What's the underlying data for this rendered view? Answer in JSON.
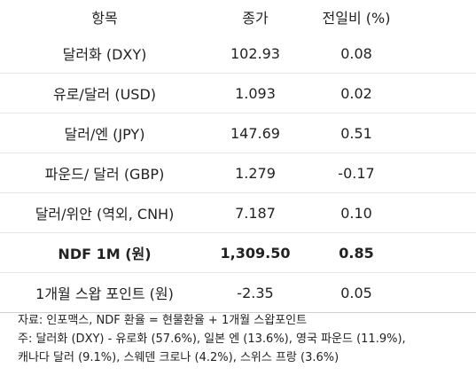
{
  "table": {
    "headers": [
      "항목",
      "종가",
      "전일비 (%)"
    ],
    "rows": [
      {
        "item": "달러화 (DXY)",
        "close": "102.93",
        "change": "0.08",
        "bold": false
      },
      {
        "item": "유로/달러 (USD)",
        "close": "1.093",
        "change": "0.02",
        "bold": false
      },
      {
        "item": "달러/엔 (JPY)",
        "close": "147.69",
        "change": "0.51",
        "bold": false
      },
      {
        "item": "파운드/ 달러 (GBP)",
        "close": "1.279",
        "change": "-0.17",
        "bold": false
      },
      {
        "item": "달러/위안 (역외, CNH)",
        "close": "7.187",
        "change": "0.10",
        "bold": false
      },
      {
        "item": "NDF 1M (원)",
        "close": "1,309.50",
        "change": "0.85",
        "bold": true
      },
      {
        "item": "1개월 스왑 포인트 (원)",
        "close": "-2.35",
        "change": "0.05",
        "bold": false
      }
    ]
  },
  "notes": {
    "source": "자료: 인포맥스, NDF 환율 = 현물환율 + 1개월 스왑포인트",
    "note_line1": "주: 달러화 (DXY) - 유로화 (57.6%), 일본 엔 (13.6%), 영국 파운드 (11.9%),",
    "note_line2": "캐나다 달러 (9.1%), 스웨덴 크로나 (4.2%), 스위스 프랑 (3.6%)"
  }
}
